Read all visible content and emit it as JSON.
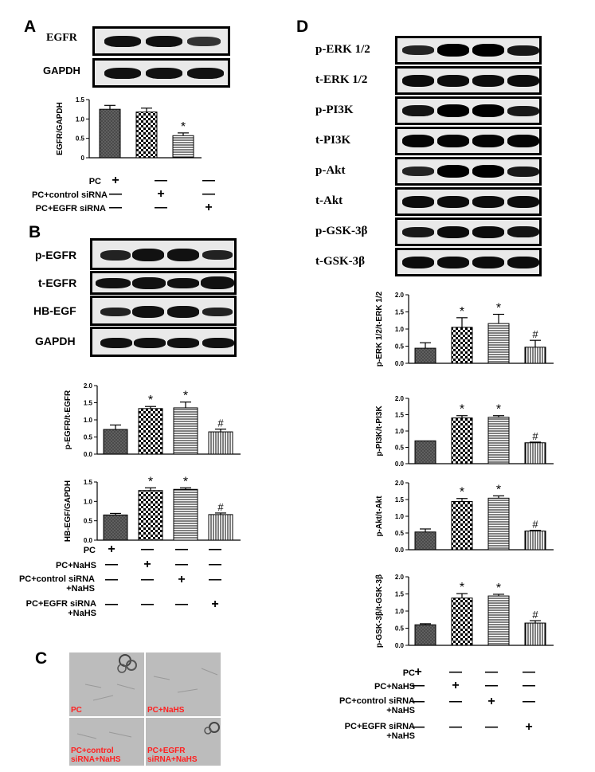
{
  "panels": {
    "A": {
      "letter": "A",
      "blots": [
        "EGFR",
        "GAPDH"
      ],
      "conditions": [
        "PC",
        "PC+control siRNA",
        "PC+EGFR siRNA"
      ],
      "matrix": [
        [
          "+",
          "—",
          "—"
        ],
        [
          "—",
          "+",
          "—"
        ],
        [
          "—",
          "—",
          "+"
        ]
      ]
    },
    "B": {
      "letter": "B",
      "blots": [
        "p-EGFR",
        "t-EGFR",
        "HB-EGF",
        "GAPDH"
      ],
      "conditions": [
        "PC",
        "PC+NaHS",
        "PC+control siRNA\n+NaHS",
        "PC+EGFR siRNA\n+NaHS"
      ],
      "matrix": [
        [
          "+",
          "—",
          "—",
          "—"
        ],
        [
          "—",
          "+",
          "—",
          "—"
        ],
        [
          "—",
          "—",
          "+",
          "—"
        ],
        [
          "—",
          "—",
          "—",
          "+"
        ]
      ]
    },
    "C": {
      "letter": "C",
      "images": [
        "PC",
        "PC+NaHS",
        "PC+control\nsiRNA+NaHS",
        "PC+EGFR\nsiRNA+NaHS"
      ]
    },
    "D": {
      "letter": "D",
      "blots": [
        "p-ERK 1/2",
        "t-ERK 1/2",
        "p-PI3K",
        "t-PI3K",
        "p-Akt",
        "t-Akt",
        "p-GSK-3β",
        "t-GSK-3β"
      ],
      "conditions": [
        "PC",
        "PC+NaHS",
        "PC+control siRNA\n+NaHS",
        "PC+EGFR siRNA\n+NaHS"
      ],
      "matrix": [
        [
          "+",
          "—",
          "—",
          "—"
        ],
        [
          "—",
          "+",
          "—",
          "—"
        ],
        [
          "—",
          "—",
          "+",
          "—"
        ],
        [
          "—",
          "—",
          "—",
          "+"
        ]
      ]
    }
  },
  "chart_data": [
    {
      "id": "A1",
      "type": "bar",
      "ylabel": "EGFR/GAPDH",
      "ylim": [
        0,
        1.5
      ],
      "yticks": [
        "0",
        "0.5",
        "1.0",
        "1.5"
      ],
      "values": [
        1.25,
        1.18,
        0.57
      ],
      "errors": [
        0.1,
        0.1,
        0.07
      ],
      "marks": [
        "",
        "",
        "*"
      ]
    },
    {
      "id": "B1",
      "type": "bar",
      "ylabel": "p-EGFR/t-EGFR",
      "ylim": [
        0,
        2.0
      ],
      "yticks": [
        "0.0",
        "0.5",
        "1.0",
        "1.5",
        "2.0"
      ],
      "values": [
        0.72,
        1.33,
        1.35,
        0.65
      ],
      "errors": [
        0.13,
        0.06,
        0.17,
        0.08
      ],
      "marks": [
        "",
        "*",
        "*",
        "#"
      ]
    },
    {
      "id": "B2",
      "type": "bar",
      "ylabel": "HB-EGF/GAPDH",
      "ylim": [
        0,
        1.5
      ],
      "yticks": [
        "0.0",
        "0.5",
        "1.0",
        "1.5"
      ],
      "values": [
        0.65,
        1.28,
        1.31,
        0.66
      ],
      "errors": [
        0.04,
        0.07,
        0.04,
        0.04
      ],
      "marks": [
        "",
        "*",
        "*",
        "#"
      ]
    },
    {
      "id": "D1",
      "type": "bar",
      "ylabel": "p-ERK 1/2/t-ERK 1/2",
      "ylim": [
        0,
        2.0
      ],
      "yticks": [
        "0.0",
        "0.5",
        "1.0",
        "1.5",
        "2.0"
      ],
      "values": [
        0.44,
        1.05,
        1.16,
        0.47
      ],
      "errors": [
        0.16,
        0.28,
        0.27,
        0.2
      ],
      "marks": [
        "",
        "*",
        "*",
        "#"
      ]
    },
    {
      "id": "D2",
      "type": "bar",
      "ylabel": "p-PI3K/t-PI3K",
      "ylim": [
        0,
        2.0
      ],
      "yticks": [
        "0.0",
        "0.5",
        "1.0",
        "1.5",
        "2.0"
      ],
      "values": [
        0.7,
        1.4,
        1.42,
        0.64
      ],
      "errors": [
        0.0,
        0.07,
        0.05,
        0.02
      ],
      "marks": [
        "",
        "*",
        "*",
        "#"
      ]
    },
    {
      "id": "D3",
      "type": "bar",
      "ylabel": "p-Akt/t-Akt",
      "ylim": [
        0,
        2.0
      ],
      "yticks": [
        "0.0",
        "0.5",
        "1.0",
        "1.5",
        "2.0"
      ],
      "values": [
        0.53,
        1.44,
        1.54,
        0.56
      ],
      "errors": [
        0.09,
        0.09,
        0.07,
        0.02
      ],
      "marks": [
        "",
        "*",
        "*",
        "#"
      ]
    },
    {
      "id": "D4",
      "type": "bar",
      "ylabel": "p-GSK-3β/t-GSK-3β",
      "ylim": [
        0,
        2.0
      ],
      "yticks": [
        "0.0",
        "0.5",
        "1.0",
        "1.5",
        "2.0"
      ],
      "values": [
        0.6,
        1.38,
        1.44,
        0.65
      ],
      "errors": [
        0.03,
        0.13,
        0.05,
        0.07
      ],
      "marks": [
        "",
        "*",
        "*",
        "#"
      ]
    }
  ]
}
